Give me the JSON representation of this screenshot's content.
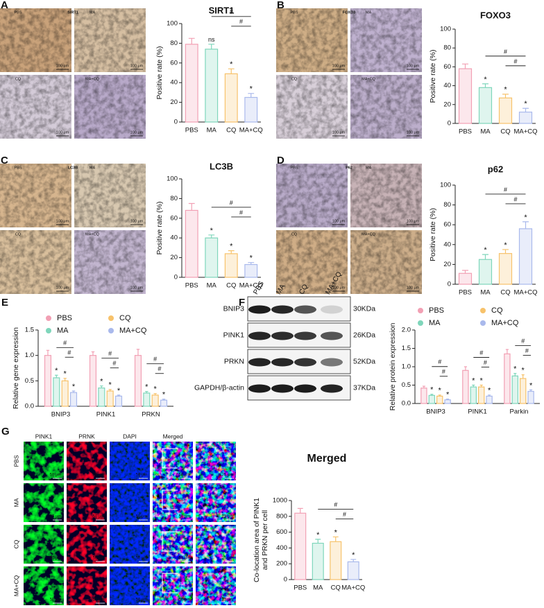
{
  "micro_panels": [
    {
      "letter": "A",
      "stain": "SIRT1",
      "image_labels": [
        "PBS",
        "MA",
        "CQ",
        "MA+CQ"
      ],
      "scale": "100 μm"
    },
    {
      "letter": "B",
      "stain": "FOXO3",
      "image_labels": [
        "PBS",
        "MA",
        "CQ",
        "MA+CQ"
      ],
      "scale": "100 μm"
    },
    {
      "letter": "C",
      "stain": "LC3B",
      "image_labels": [
        "PBS",
        "MA",
        "CQ",
        "MA+CQ"
      ],
      "scale": "100 μm"
    },
    {
      "letter": "D",
      "stain": "P62",
      "image_labels": [
        "PBS",
        "MA",
        "CQ",
        "MA+CQ"
      ],
      "scale": "100 μm"
    }
  ],
  "panel_e": {
    "letter": "E"
  },
  "blot": {
    "letter": "F",
    "lanes": [
      "PBS",
      "MA",
      "CQ",
      "MA+CQ"
    ],
    "rows": [
      {
        "protein": "BNIP3",
        "size": "30KDa"
      },
      {
        "protein": "PINK1",
        "size": "26KDa"
      },
      {
        "protein": "PRKN",
        "size": "52KDa"
      },
      {
        "protein": "GAPDH/β-actin",
        "size": "37KDa"
      }
    ]
  },
  "fluorescence": {
    "letter": "G",
    "channels": [
      "PINK1",
      "PRNK",
      "DAPI",
      "Merged"
    ],
    "groups": [
      "PBS",
      "MA",
      "CQ",
      "MA+CQ"
    ],
    "scale_main": "50 μm",
    "scale_zoom": "25 μm"
  },
  "chart_data": [
    {
      "type": "bar",
      "title": "SIRT1",
      "ylabel": "Positive rate (%)",
      "categories": [
        "PBS",
        "MA",
        "CQ",
        "MA+CQ"
      ],
      "values": [
        79,
        74,
        49,
        25
      ],
      "errors": [
        6,
        5,
        5,
        4
      ],
      "annotations": [
        null,
        "ns",
        "*",
        "*"
      ],
      "colors": [
        "#f2a0b4",
        "#7fd6bb",
        "#f7c26b",
        "#a9b9ec"
      ],
      "ylim": [
        0,
        100
      ],
      "yticks": [
        0,
        20,
        40,
        60,
        80,
        100
      ],
      "brackets": [
        {
          "from": "MA",
          "to": "MA+CQ",
          "label": "#"
        },
        {
          "from": "CQ",
          "to": "MA+CQ",
          "label": "#"
        }
      ]
    },
    {
      "type": "bar",
      "title": "FOXO3",
      "ylabel": "Positive rate (%)",
      "categories": [
        "PBS",
        "MA",
        "CQ",
        "MA+CQ"
      ],
      "values": [
        58,
        38,
        27,
        12
      ],
      "errors": [
        5,
        4,
        4,
        4
      ],
      "annotations": [
        null,
        "*",
        "*",
        "*"
      ],
      "colors": [
        "#f2a0b4",
        "#7fd6bb",
        "#f7c26b",
        "#a9b9ec"
      ],
      "ylim": [
        0,
        100
      ],
      "yticks": [
        0,
        20,
        40,
        60,
        80,
        100
      ],
      "brackets": [
        {
          "from": "MA",
          "to": "MA+CQ",
          "label": "#"
        },
        {
          "from": "CQ",
          "to": "MA+CQ",
          "label": "#"
        }
      ]
    },
    {
      "type": "bar",
      "title": "LC3B",
      "ylabel": "Positive rate (%)",
      "categories": [
        "PBS",
        "MA",
        "CQ",
        "MA+CQ"
      ],
      "values": [
        68,
        40,
        24,
        13
      ],
      "errors": [
        7,
        3,
        3,
        2
      ],
      "annotations": [
        null,
        "*",
        "*",
        "*"
      ],
      "colors": [
        "#f2a0b4",
        "#7fd6bb",
        "#f7c26b",
        "#a9b9ec"
      ],
      "ylim": [
        0,
        100
      ],
      "yticks": [
        0,
        20,
        40,
        60,
        80,
        100
      ],
      "brackets": [
        {
          "from": "MA",
          "to": "MA+CQ",
          "label": "#"
        },
        {
          "from": "CQ",
          "to": "MA+CQ",
          "label": "#"
        }
      ]
    },
    {
      "type": "bar",
      "title": "p62",
      "ylabel": "Positive rate (%)",
      "categories": [
        "PBS",
        "MA",
        "CQ",
        "MA+CQ"
      ],
      "values": [
        11,
        25,
        31,
        56
      ],
      "errors": [
        3,
        5,
        4,
        7
      ],
      "annotations": [
        null,
        "*",
        "*",
        "*"
      ],
      "colors": [
        "#f2a0b4",
        "#7fd6bb",
        "#f7c26b",
        "#a9b9ec"
      ],
      "ylim": [
        0,
        100
      ],
      "yticks": [
        0,
        20,
        40,
        60,
        80,
        100
      ],
      "brackets": [
        {
          "from": "MA",
          "to": "MA+CQ",
          "label": "#"
        },
        {
          "from": "CQ",
          "to": "MA+CQ",
          "label": "#"
        }
      ]
    },
    {
      "type": "grouped-bar",
      "ylabel": "Relative gene expression",
      "categories": [
        "BNIP3",
        "PINK1",
        "PRKN"
      ],
      "series": [
        {
          "name": "PBS",
          "color": "#f2a0b4",
          "values": [
            1.0,
            1.0,
            1.0
          ],
          "errors": [
            0.1,
            0.07,
            0.12
          ],
          "annotations": [
            null,
            null,
            null
          ]
        },
        {
          "name": "MA",
          "color": "#7fd6bb",
          "values": [
            0.56,
            0.36,
            0.26
          ],
          "errors": [
            0.05,
            0.04,
            0.03
          ],
          "annotations": [
            "*",
            "*",
            "*"
          ]
        },
        {
          "name": "CQ",
          "color": "#f7c26b",
          "values": [
            0.5,
            0.3,
            0.22
          ],
          "errors": [
            0.05,
            0.03,
            0.03
          ],
          "annotations": [
            "*",
            "*",
            "*"
          ]
        },
        {
          "name": "MA+CQ",
          "color": "#a9b9ec",
          "values": [
            0.27,
            0.2,
            0.12
          ],
          "errors": [
            0.03,
            0.02,
            0.02
          ],
          "annotations": [
            "*",
            "*",
            "*"
          ]
        }
      ],
      "ylim": [
        0,
        1.5
      ],
      "yticks": [
        {
          "value": 0,
          "label": "0.0"
        },
        0.5,
        {
          "value": 1,
          "label": "1.0"
        },
        1.5
      ],
      "brackets": [
        {
          "from": "MA",
          "to": "MA+CQ",
          "label": "#"
        },
        {
          "from": "CQ",
          "to": "MA+CQ",
          "label": "#"
        }
      ],
      "legend": "top"
    },
    {
      "type": "grouped-bar",
      "ylabel": "Relative protein expression",
      "categories": [
        "BNIP3",
        "PINK1",
        "Parkin"
      ],
      "series": [
        {
          "name": "PBS",
          "color": "#f2a0b4",
          "values": [
            0.42,
            0.9,
            1.35
          ],
          "errors": [
            0.05,
            0.1,
            0.12
          ],
          "annotations": [
            null,
            null,
            null
          ]
        },
        {
          "name": "MA",
          "color": "#7fd6bb",
          "values": [
            0.22,
            0.45,
            0.75
          ],
          "errors": [
            0.03,
            0.05,
            0.07
          ],
          "annotations": [
            "*",
            "*",
            "*"
          ]
        },
        {
          "name": "CQ",
          "color": "#f7c26b",
          "values": [
            0.2,
            0.45,
            0.68
          ],
          "errors": [
            0.03,
            0.05,
            0.1
          ],
          "annotations": [
            "*",
            "*",
            "*"
          ]
        },
        {
          "name": "MA+CQ",
          "color": "#a9b9ec",
          "values": [
            0.1,
            0.2,
            0.33
          ],
          "errors": [
            0.02,
            0.03,
            0.04
          ],
          "annotations": [
            "*",
            "*",
            "*"
          ]
        }
      ],
      "ylim": [
        0,
        2
      ],
      "yticks": [
        {
          "value": 0,
          "label": "0.0"
        },
        0.5,
        {
          "value": 1,
          "label": "1.0"
        },
        1.5,
        {
          "value": 2,
          "label": "2.0"
        }
      ],
      "brackets": [
        {
          "from": "MA",
          "to": "MA+CQ",
          "label": "#"
        },
        {
          "from": "CQ",
          "to": "MA+CQ",
          "label": "#"
        }
      ],
      "legend": "top"
    },
    {
      "type": "bar",
      "title": "Merged",
      "ylabel": [
        "Co-location area of PINK1",
        "and PRKN per cell"
      ],
      "categories": [
        "PBS",
        "MA",
        "CQ",
        "MA+CQ"
      ],
      "values": [
        840,
        460,
        480,
        225
      ],
      "errors": [
        60,
        50,
        60,
        30
      ],
      "annotations": [
        null,
        "*",
        "*",
        "*"
      ],
      "colors": [
        "#f2a0b4",
        "#7fd6bb",
        "#f7c26b",
        "#a9b9ec"
      ],
      "ylim": [
        0,
        1000
      ],
      "yticks": [
        0,
        200,
        400,
        600,
        800,
        1000
      ],
      "brackets": [
        {
          "from": "MA",
          "to": "MA+CQ",
          "label": "#"
        },
        {
          "from": "CQ",
          "to": "MA+CQ",
          "label": "#"
        }
      ]
    }
  ]
}
